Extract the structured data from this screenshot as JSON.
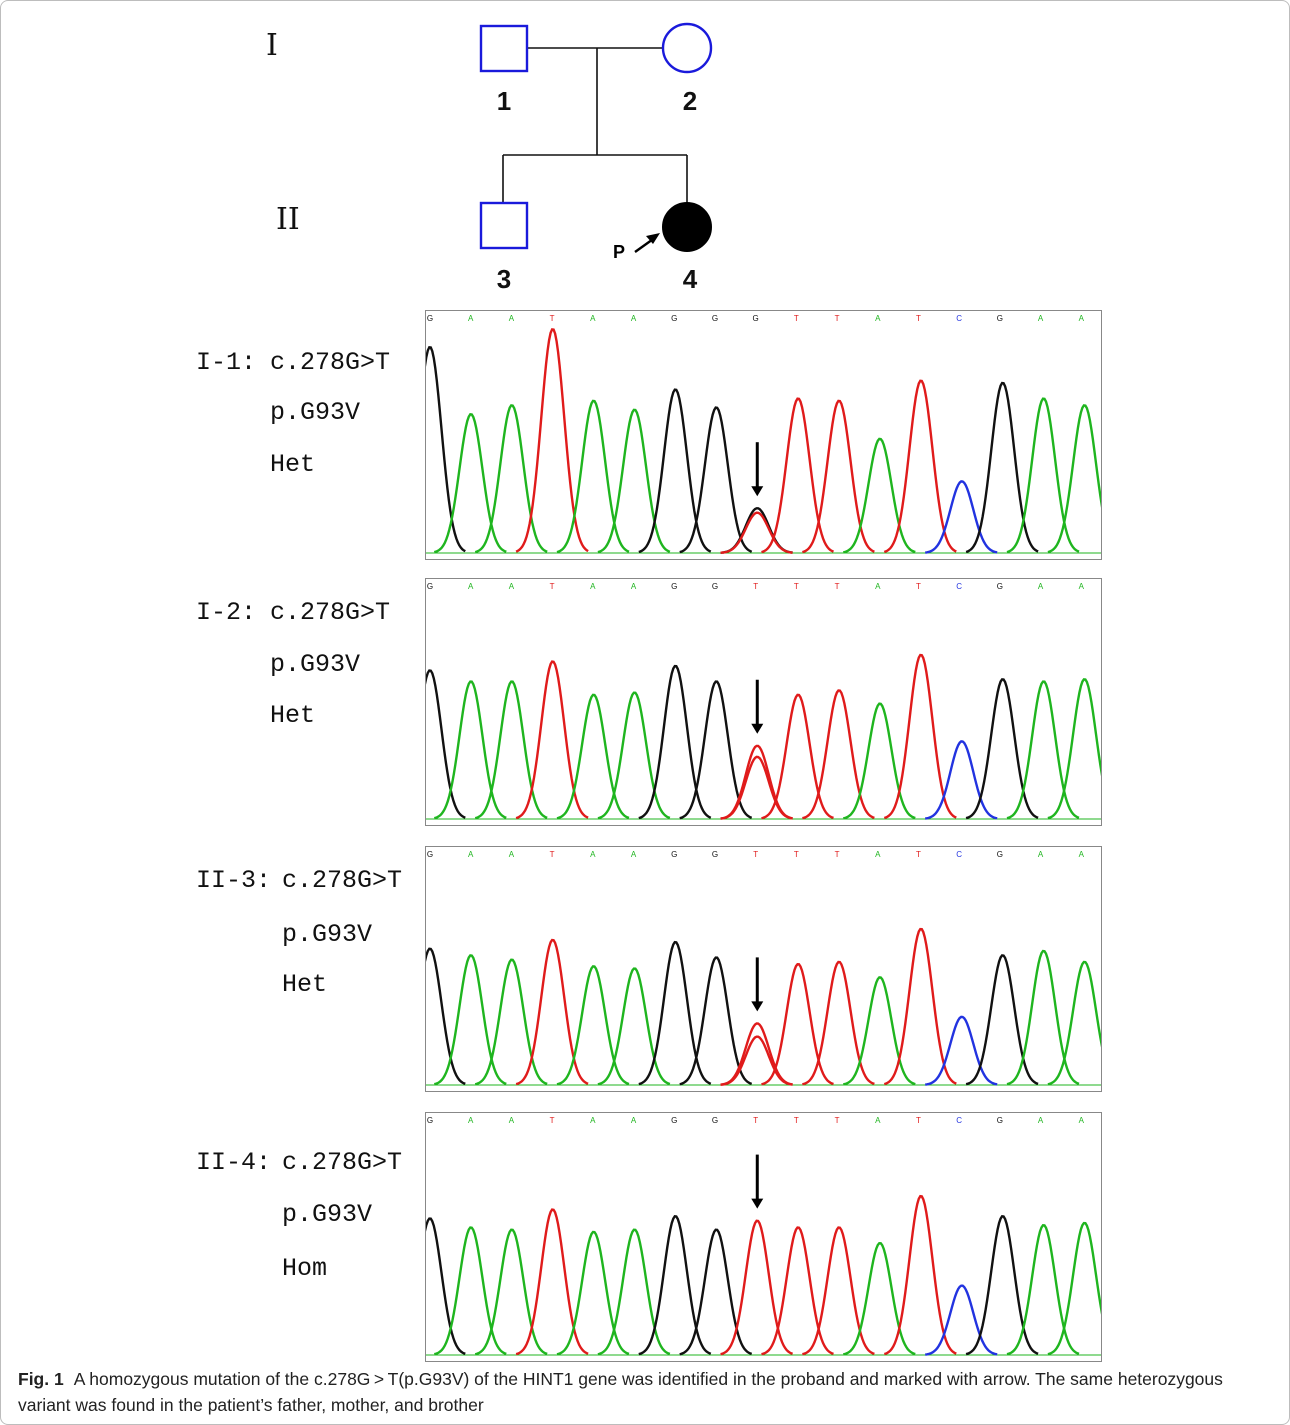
{
  "pedigree": {
    "generations": [
      "I",
      "II"
    ],
    "individuals": [
      {
        "id": "1",
        "sex": "male",
        "affected": false
      },
      {
        "id": "2",
        "sex": "female",
        "affected": false
      },
      {
        "id": "3",
        "sex": "male",
        "affected": false
      },
      {
        "id": "4",
        "sex": "female",
        "affected": true,
        "proband": true
      }
    ],
    "proband_label": "P",
    "colors": {
      "symbol": "#1a1adb",
      "affected": "#000000"
    }
  },
  "sequence": [
    "G",
    "A",
    "A",
    "T",
    "A",
    "A",
    "G",
    "G",
    "G",
    "T",
    "T",
    "A",
    "T",
    "C",
    "G",
    "A",
    "A"
  ],
  "panels": [
    {
      "id": "I-1:",
      "variant": "c.278G>T",
      "protein": "p.G93V",
      "zygosity": "Het",
      "bases": [
        "G",
        "A",
        "A",
        "T",
        "A",
        "A",
        "G",
        "G",
        "G",
        "T",
        "T",
        "A",
        "T",
        "C",
        "G",
        "A",
        "A"
      ],
      "heights": [
        0.92,
        0.62,
        0.66,
        1.0,
        0.68,
        0.64,
        0.73,
        0.65,
        0.2,
        0.69,
        0.68,
        0.51,
        0.77,
        0.32,
        0.76,
        0.69,
        0.66
      ],
      "secondary_T": 0.18
    },
    {
      "id": "I-2:",
      "variant": "c.278G>T",
      "protein": "p.G93V",
      "zygosity": "Het",
      "bases": [
        "G",
        "A",
        "A",
        "T",
        "A",
        "A",
        "G",
        "G",
        "T",
        "T",
        "T",
        "A",
        "T",
        "C",
        "G",
        "A",
        "A"
      ],
      "heights": [
        0.67,
        0.62,
        0.62,
        0.71,
        0.56,
        0.57,
        0.69,
        0.62,
        0.33,
        0.56,
        0.58,
        0.52,
        0.74,
        0.35,
        0.63,
        0.62,
        0.63
      ],
      "secondary_T": 0.28
    },
    {
      "id": "II-3:",
      "variant": "c.278G>T",
      "protein": "p.G93V",
      "zygosity": "Het",
      "bases": [
        "G",
        "A",
        "A",
        "T",
        "A",
        "A",
        "G",
        "G",
        "T",
        "T",
        "T",
        "A",
        "T",
        "C",
        "G",
        "A",
        "A"
      ],
      "heights": [
        0.62,
        0.59,
        0.57,
        0.66,
        0.54,
        0.53,
        0.65,
        0.58,
        0.28,
        0.55,
        0.56,
        0.49,
        0.71,
        0.31,
        0.59,
        0.61,
        0.56
      ],
      "secondary_T": 0.22
    },
    {
      "id": "II-4:",
      "variant": "c.278G>T",
      "protein": "p.G93V",
      "zygosity": "Hom",
      "bases": [
        "G",
        "A",
        "A",
        "T",
        "A",
        "A",
        "G",
        "G",
        "T",
        "T",
        "T",
        "A",
        "T",
        "C",
        "G",
        "A",
        "A"
      ],
      "heights": [
        0.61,
        0.57,
        0.56,
        0.65,
        0.55,
        0.56,
        0.62,
        0.56,
        0.6,
        0.57,
        0.57,
        0.5,
        0.71,
        0.31,
        0.62,
        0.58,
        0.59
      ],
      "secondary_T": 0
    }
  ],
  "base_colors": {
    "A": "#1fb51f",
    "T": "#e01b1b",
    "G": "#111111",
    "C": "#2233e0"
  },
  "caption": {
    "label": "Fig. 1",
    "text": "A homozygous mutation of the c.278G > T(p.G93V) of the HINT1 gene was identified in the proband and marked with arrow. The same heterozygous variant was found in the patient’s father, mother, and brother"
  }
}
